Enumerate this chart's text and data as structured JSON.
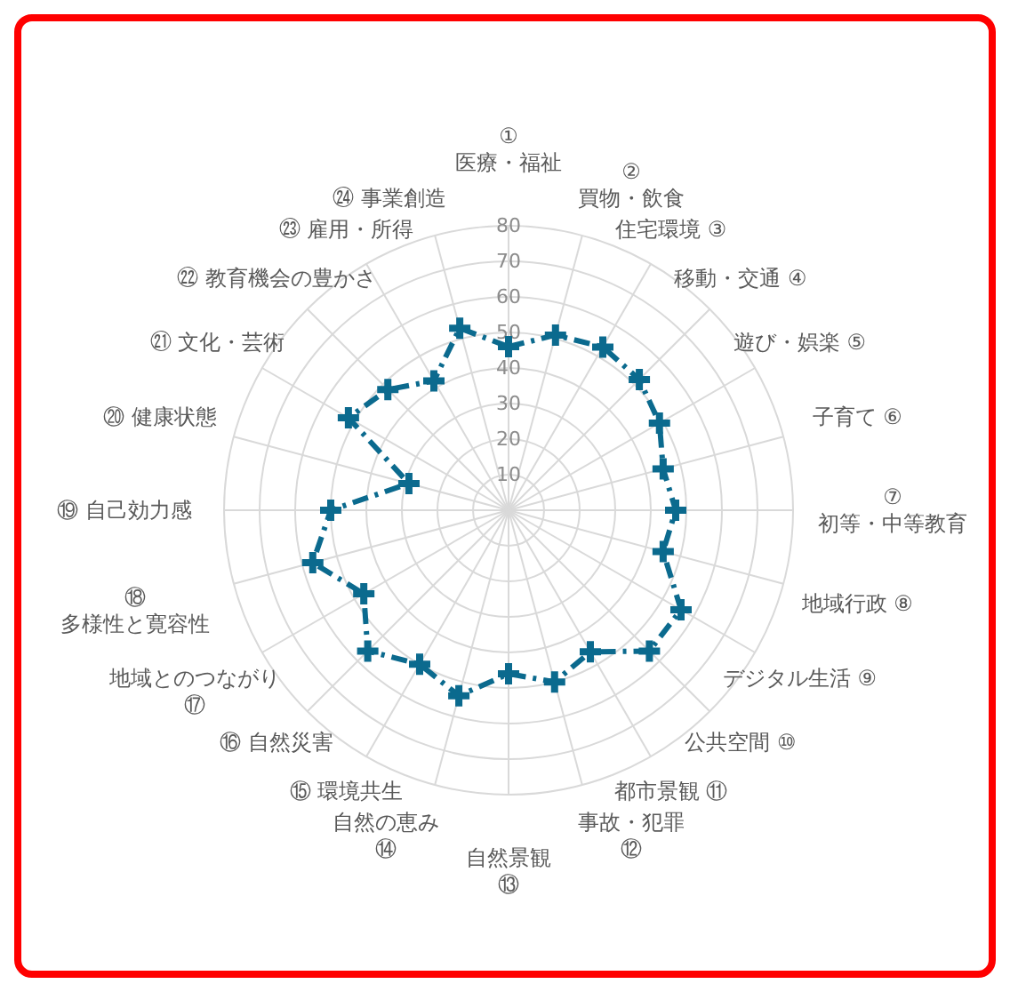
{
  "chart_data": {
    "type": "radar",
    "categories": [
      "① 医療・福祉",
      "② 買物・飲食",
      "住宅環境 ③",
      "移動・交通 ④",
      "遊び・娯楽 ⑤",
      "子育て ⑥",
      "⑦ 初等・中等教育",
      "地域行政 ⑧",
      "デジタル生活 ⑨",
      "公共空間 ⑩",
      "都市景観 ⑪",
      "事故・犯罪 ⑫",
      "自然景観 ⑬",
      "自然の恵み ⑭",
      "⑮ 環境共生",
      "⑯ 自然災害",
      "地域とのつながり ⑰",
      "⑱ 多様性と寛容性",
      "⑲ 自己効力感",
      "⑳ 健康状態",
      "㉑ 文化・芸術",
      "㉒ 教育機会の豊かさ",
      "㉓ 雇用・所得",
      "㉔ 事業創造"
    ],
    "series": [
      {
        "color": "#0b6a8e",
        "values": [
          46,
          51,
          53,
          52,
          49,
          45,
          47,
          45,
          56,
          56,
          46,
          50,
          46,
          54,
          50,
          56,
          47,
          57,
          50,
          29,
          52,
          48,
          42,
          53
        ]
      }
    ],
    "ylim": [
      0,
      80
    ],
    "yticks": [
      10,
      20,
      30,
      40,
      50,
      60,
      70,
      80
    ],
    "grid": true,
    "marker": "cross",
    "line_style": "dashed"
  }
}
